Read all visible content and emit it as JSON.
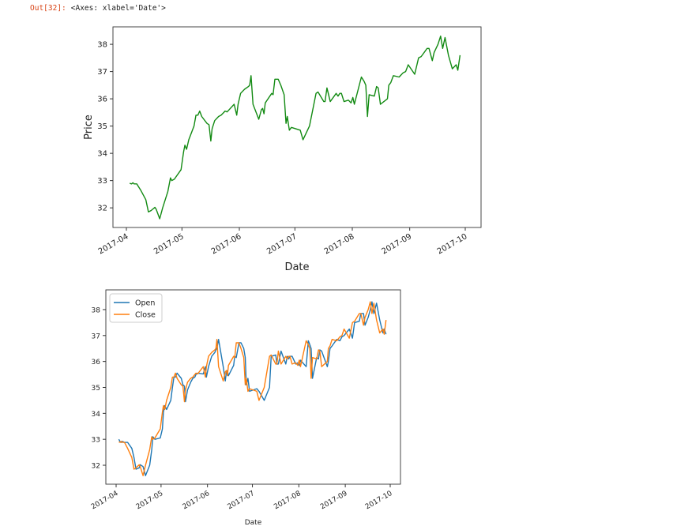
{
  "cell": {
    "prompt": "Out[32]:",
    "repr": "<Axes: xlabel='Date'>"
  },
  "chart_data": [
    {
      "type": "line",
      "title": "",
      "xlabel": "Date",
      "ylabel": "Price",
      "x_unit": "days since 2017-04-01",
      "xticks": [
        {
          "label": "2017-04",
          "day": 0
        },
        {
          "label": "2017-05",
          "day": 30
        },
        {
          "label": "2017-06",
          "day": 61
        },
        {
          "label": "2017-07",
          "day": 91
        },
        {
          "label": "2017-08",
          "day": 122
        },
        {
          "label": "2017-09",
          "day": 153
        },
        {
          "label": "2017-10",
          "day": 183
        }
      ],
      "yticks": [
        32,
        33,
        34,
        35,
        36,
        37,
        38
      ],
      "ylim": [
        31.28,
        38.64
      ],
      "xlim": [
        -7,
        190
      ],
      "grid": false,
      "series": [
        {
          "name": "Close",
          "color": "#128a12",
          "values": "close"
        }
      ]
    },
    {
      "type": "line",
      "title": "",
      "xlabel": "Date",
      "ylabel": "",
      "x_unit": "days since 2017-04-01",
      "xticks": [
        {
          "label": "2017-04",
          "day": 0
        },
        {
          "label": "2017-05",
          "day": 30
        },
        {
          "label": "2017-06",
          "day": 61
        },
        {
          "label": "2017-07",
          "day": 91
        },
        {
          "label": "2017-08",
          "day": 122
        },
        {
          "label": "2017-09",
          "day": 153
        },
        {
          "label": "2017-10",
          "day": 183
        }
      ],
      "yticks": [
        32,
        33,
        34,
        35,
        36,
        37,
        38
      ],
      "ylim": [
        31.27,
        38.76
      ],
      "xlim": [
        -7,
        190
      ],
      "grid": false,
      "legend": {
        "placement": "top-left",
        "entries": [
          "Open",
          "Close"
        ]
      },
      "series": [
        {
          "name": "Open",
          "color": "#1f77b4",
          "values": "open"
        },
        {
          "name": "Close",
          "color": "#ff7f0e",
          "values": "close"
        }
      ]
    }
  ],
  "x": [
    1.8,
    2.8,
    3.5,
    4.2,
    5.6,
    7.7,
    10.5,
    11.9,
    13.3,
    15.4,
    16.1,
    18.0,
    19.6,
    22.4,
    23.8,
    24.5,
    25.9,
    29.5,
    30.9,
    31.6,
    32.5,
    33.7,
    36.5,
    37.6,
    38.6,
    39.6,
    40.7,
    43.5,
    44.6,
    45.6,
    46.3,
    47.7,
    49.8,
    51.2,
    52.6,
    53.3,
    54.4,
    58.2,
    59.6,
    60.3,
    61.7,
    63.8,
    65.9,
    66.6,
    67.3,
    68.4,
    71.5,
    72.9,
    73.6,
    74.3,
    75.0,
    78.5,
    79.2,
    80.2,
    82.0,
    83.4,
    85.2,
    86.2,
    86.9,
    88.0,
    89.1,
    93.9,
    95.4,
    98.9,
    102.4,
    103.5,
    106.6,
    107.3,
    108.3,
    110.1,
    113.3,
    114.3,
    115.3,
    116.1,
    117.5,
    119.9,
    121.3,
    122.3,
    123.1,
    126.9,
    128.3,
    129.3,
    130.2,
    131.1,
    133.9,
    135.1,
    136.0,
    137.2,
    141.0,
    141.7,
    142.8,
    144.2,
    147.3,
    149.4,
    150.8,
    152.2,
    155.7,
    157.8,
    159.2,
    162.4,
    163.4,
    165.2,
    166.2,
    168.3,
    169.7,
    170.8,
    172.1,
    173.9,
    176.0,
    178.1,
    179.0,
    180.2
  ],
  "close": [
    32.9,
    32.88,
    32.92,
    32.88,
    32.88,
    32.65,
    32.3,
    31.85,
    31.9,
    32.02,
    31.95,
    31.6,
    32.0,
    32.6,
    33.1,
    33.0,
    33.05,
    33.4,
    34.05,
    34.3,
    34.15,
    34.5,
    35.0,
    35.4,
    35.4,
    35.55,
    35.35,
    35.1,
    35.05,
    34.45,
    34.9,
    35.2,
    35.35,
    35.4,
    35.5,
    35.55,
    35.52,
    35.8,
    35.4,
    35.8,
    36.2,
    36.35,
    36.45,
    36.5,
    36.85,
    35.8,
    35.25,
    35.6,
    35.65,
    35.45,
    35.85,
    36.2,
    36.15,
    36.72,
    36.72,
    36.5,
    36.15,
    35.1,
    35.35,
    34.85,
    34.95,
    34.85,
    34.5,
    35.0,
    36.2,
    36.25,
    35.9,
    35.9,
    36.4,
    35.9,
    36.2,
    36.1,
    36.2,
    36.2,
    35.9,
    35.95,
    35.85,
    36.05,
    35.8,
    36.8,
    36.65,
    36.5,
    35.35,
    36.15,
    36.1,
    36.45,
    36.4,
    35.8,
    36.0,
    36.5,
    36.6,
    36.85,
    36.8,
    36.95,
    37.0,
    37.25,
    36.9,
    37.5,
    37.55,
    37.85,
    37.85,
    37.4,
    37.7,
    38.0,
    38.3,
    37.85,
    38.25,
    37.6,
    37.1,
    37.25,
    37.05,
    37.6
  ],
  "open": [
    33.0,
    32.9,
    32.88,
    32.92,
    32.88,
    32.88,
    32.65,
    32.3,
    31.85,
    31.9,
    32.02,
    31.95,
    31.6,
    32.0,
    32.6,
    33.1,
    33.0,
    33.05,
    33.4,
    34.05,
    34.3,
    34.15,
    34.5,
    35.0,
    35.4,
    35.4,
    35.55,
    35.35,
    35.1,
    35.05,
    34.45,
    34.9,
    35.2,
    35.35,
    35.4,
    35.5,
    35.55,
    35.52,
    35.8,
    35.4,
    35.8,
    36.2,
    36.35,
    36.45,
    36.5,
    36.85,
    35.8,
    35.25,
    35.6,
    35.65,
    35.45,
    35.85,
    36.2,
    36.15,
    36.72,
    36.72,
    36.5,
    36.15,
    35.1,
    35.35,
    34.85,
    34.95,
    34.85,
    34.5,
    35.0,
    36.2,
    36.25,
    35.9,
    35.9,
    36.4,
    35.9,
    36.2,
    36.1,
    36.2,
    36.2,
    35.9,
    35.95,
    35.85,
    36.05,
    35.8,
    36.8,
    36.65,
    36.5,
    35.35,
    36.15,
    36.1,
    36.45,
    36.4,
    35.8,
    36.0,
    36.5,
    36.6,
    36.85,
    36.8,
    36.95,
    37.0,
    37.25,
    36.9,
    37.5,
    37.55,
    37.85,
    37.85,
    37.4,
    37.7,
    38.0,
    38.3,
    37.85,
    38.25,
    37.6,
    37.1,
    37.25,
    37.05
  ]
}
